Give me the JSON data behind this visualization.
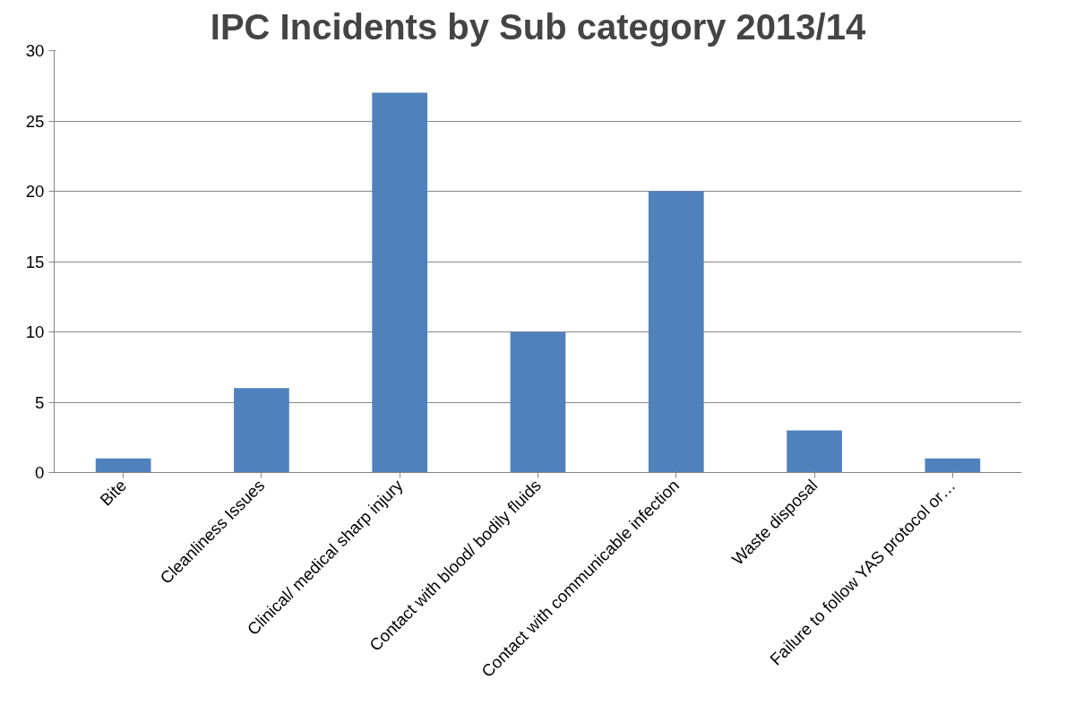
{
  "chart_data": {
    "type": "bar",
    "title": "IPC Incidents by Sub category 2013/14",
    "categories": [
      "Bite",
      "Cleanliness Issues",
      "Clinical/ medical sharp injury",
      "Contact with blood/ bodily fluids",
      "Contact with communicable infection",
      "Waste disposal",
      "Failure to follow YAS protocol or…"
    ],
    "values": [
      1,
      6,
      27,
      10,
      20,
      3,
      1
    ],
    "color": "#4f81bd",
    "ylim": [
      0,
      30
    ],
    "yticks": [
      0,
      5,
      10,
      15,
      20,
      25,
      30
    ],
    "grid": "y"
  }
}
